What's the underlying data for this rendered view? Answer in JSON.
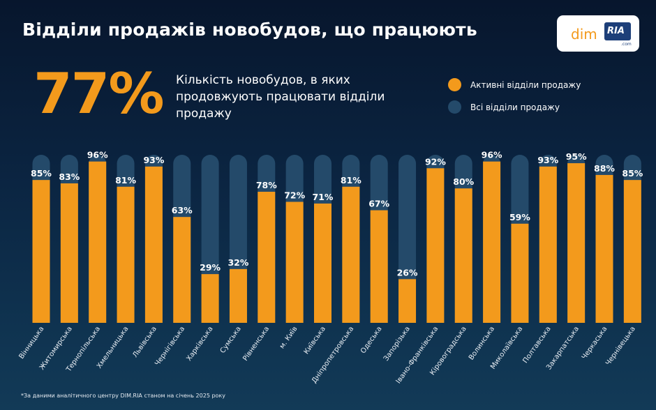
{
  "header": {
    "title": "Відділи продажів новобудов, що працюють"
  },
  "logo": {
    "dim": "dim",
    "ria": "RIA",
    "com": ".com"
  },
  "highlight": {
    "value": "77%",
    "description": "Кількість новобудов, в яких продовжують працювати відділи продажу"
  },
  "legend": [
    {
      "label": "Активні відділи продажу",
      "color": "#f39a1c"
    },
    {
      "label": "Всі відділи продажу",
      "color": "#244a6a"
    }
  ],
  "footnote": "*За даними аналітичного центру DIM.RIA станом на січень 2025 року",
  "colors": {
    "active": "#f39a1c",
    "total": "#244a6a",
    "background": "#0b2542"
  },
  "chart_data": {
    "type": "bar",
    "ylim": [
      0,
      100
    ],
    "categories": [
      "Вінницька",
      "Житомирська",
      "Тернопільська",
      "Хмельницька",
      "Львівська",
      "Чернігівська",
      "Харківська",
      "Сумська",
      "Рівненська",
      "м. Київ",
      "Київська",
      "Дніпропетровська",
      "Одеська",
      "Запорізька",
      "Івано-Франківська",
      "Кіровоградська",
      "Волинська",
      "Миколаївська",
      "Полтавська",
      "Закарпатська",
      "Черкаська",
      "Чернівецька"
    ],
    "series": [
      {
        "name": "Активні відділи продажу",
        "values": [
          85,
          83,
          96,
          81,
          93,
          63,
          29,
          32,
          78,
          72,
          71,
          81,
          67,
          26,
          92,
          80,
          96,
          59,
          93,
          95,
          88,
          85
        ]
      },
      {
        "name": "Всі відділи продажу",
        "values": [
          100,
          100,
          100,
          100,
          100,
          100,
          100,
          100,
          100,
          100,
          100,
          100,
          100,
          100,
          100,
          100,
          100,
          100,
          100,
          100,
          100,
          100
        ]
      }
    ],
    "value_labels": [
      "85%",
      "83%",
      "96%",
      "81%",
      "93%",
      "63%",
      "29%",
      "32%",
      "78%",
      "72%",
      "71%",
      "81%",
      "67%",
      "26%",
      "92%",
      "80%",
      "96%",
      "59%",
      "93%",
      "95%",
      "88%",
      "85%"
    ]
  }
}
